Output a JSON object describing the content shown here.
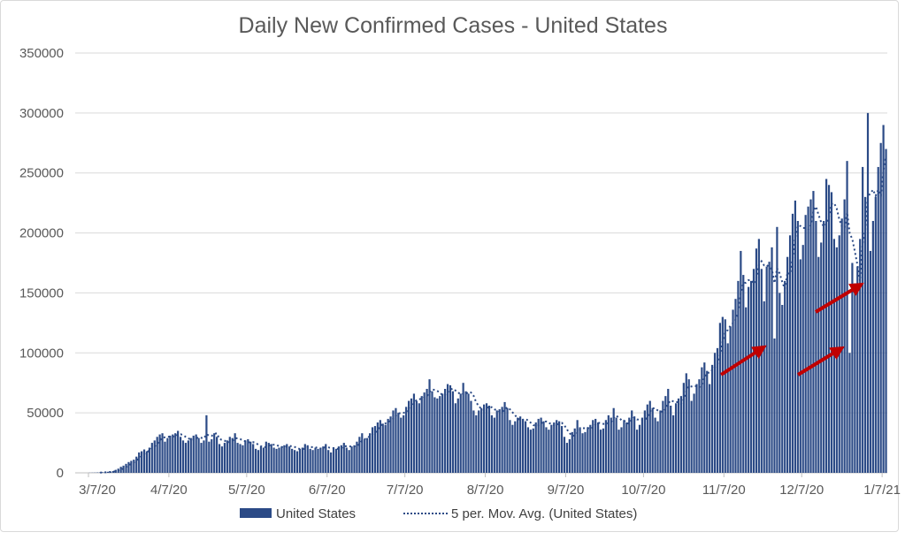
{
  "chart_data": {
    "type": "bar",
    "title": "Daily New Confirmed Cases - United States",
    "xlabel": "",
    "ylabel": "",
    "start_date": "2020-03-07",
    "ylim": [
      0,
      350000
    ],
    "yticks": [
      "0",
      "50000",
      "100000",
      "150000",
      "200000",
      "250000",
      "300000",
      "350000"
    ],
    "xticks": [
      {
        "label": "3/7/20",
        "day": 0
      },
      {
        "label": "4/7/20",
        "day": 31
      },
      {
        "label": "5/7/20",
        "day": 61
      },
      {
        "label": "6/7/20",
        "day": 92
      },
      {
        "label": "7/7/20",
        "day": 122
      },
      {
        "label": "8/7/20",
        "day": 153
      },
      {
        "label": "9/7/20",
        "day": 184
      },
      {
        "label": "10/7/20",
        "day": 214
      },
      {
        "label": "11/7/20",
        "day": 245
      },
      {
        "label": "12/7/20",
        "day": 275
      },
      {
        "label": "1/7/21",
        "day": 306
      }
    ],
    "grid": true,
    "legend_position": "bottom",
    "series": [
      {
        "name": "United States",
        "kind": "bar",
        "color": "#2b4a86",
        "values": [
          100,
          150,
          200,
          300,
          400,
          500,
          700,
          900,
          1000,
          1500,
          2500,
          3500,
          5000,
          6000,
          7500,
          9000,
          10000,
          11000,
          13500,
          17000,
          18000,
          19500,
          18000,
          21000,
          25000,
          27000,
          30000,
          32000,
          33000,
          26000,
          29000,
          31000,
          32000,
          33000,
          35000,
          30000,
          27000,
          25000,
          27000,
          29000,
          31000,
          32000,
          29000,
          25000,
          27000,
          48000,
          26000,
          28000,
          33000,
          30000,
          24000,
          22000,
          25000,
          27000,
          30000,
          29000,
          33000,
          25000,
          24000,
          23000,
          27000,
          28000,
          26000,
          24000,
          20000,
          19000,
          22000,
          21000,
          26000,
          25000,
          24000,
          21000,
          20000,
          21000,
          22000,
          23000,
          24000,
          22000,
          20000,
          19000,
          18000,
          20000,
          21000,
          24000,
          23000,
          20000,
          19000,
          21000,
          20000,
          21000,
          22000,
          24000,
          19000,
          17000,
          21000,
          20000,
          22000,
          23000,
          25000,
          21000,
          19000,
          22000,
          23000,
          26000,
          30000,
          33000,
          28000,
          29000,
          33000,
          38000,
          39000,
          42000,
          44000,
          41000,
          40000,
          45000,
          47000,
          52000,
          54000,
          50000,
          46000,
          48000,
          55000,
          60000,
          62000,
          66000,
          60000,
          58000,
          64000,
          67000,
          70000,
          78000,
          68000,
          63000,
          62000,
          64000,
          66000,
          70000,
          74000,
          73000,
          68000,
          58000,
          62000,
          66000,
          75000,
          68000,
          66000,
          60000,
          52000,
          48000,
          52000,
          54000,
          57000,
          58000,
          56000,
          48000,
          46000,
          52000,
          53000,
          55000,
          59000,
          54000,
          44000,
          40000,
          43000,
          46000,
          47000,
          45000,
          43000,
          38000,
          36000,
          37000,
          42000,
          45000,
          46000,
          43000,
          38000,
          36000,
          40000,
          42000,
          44000,
          43000,
          39000,
          30000,
          25000,
          28000,
          34000,
          37000,
          44000,
          38000,
          33000,
          34000,
          38000,
          40000,
          44000,
          45000,
          42000,
          36000,
          37000,
          44000,
          48000,
          46000,
          54000,
          46000,
          36000,
          38000,
          44000,
          42000,
          46000,
          52000,
          47000,
          36000,
          40000,
          46000,
          52000,
          57000,
          60000,
          54000,
          46000,
          43000,
          52000,
          60000,
          64000,
          70000,
          56000,
          48000,
          58000,
          62000,
          64000,
          75000,
          83000,
          78000,
          60000,
          66000,
          74000,
          78000,
          88000,
          92000,
          85000,
          74000,
          90000,
          100000,
          104000,
          125000,
          130000,
          128000,
          108000,
          122000,
          136000,
          145000,
          160000,
          185000,
          165000,
          138000,
          155000,
          160000,
          170000,
          187000,
          195000,
          170000,
          143000,
          172000,
          176000,
          188000,
          112000,
          205000,
          150000,
          140000,
          160000,
          180000,
          198000,
          216000,
          227000,
          210000,
          178000,
          190000,
          215000,
          222000,
          228000,
          235000,
          210000,
          180000,
          192000,
          210000,
          245000,
          240000,
          234000,
          195000,
          188000,
          198000,
          212000,
          228000,
          260000,
          100000,
          175000,
          158000,
          172000,
          195000,
          255000,
          230000,
          300000,
          185000,
          210000,
          230000,
          255000,
          275000,
          290000,
          270000
        ]
      },
      {
        "name": "5 per. Mov. Avg. (United States)",
        "kind": "moving-average",
        "period": 5,
        "color": "#2b4a86"
      }
    ],
    "annotations": [
      {
        "kind": "arrow",
        "color": "#c00000"
      },
      {
        "kind": "arrow",
        "color": "#c00000"
      },
      {
        "kind": "arrow",
        "color": "#c00000"
      }
    ]
  }
}
